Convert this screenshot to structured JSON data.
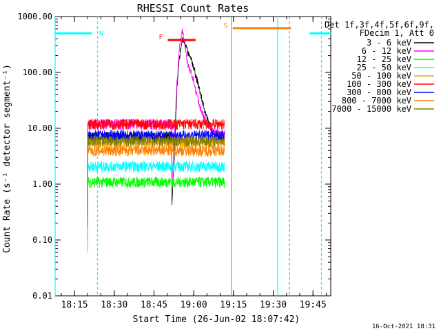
{
  "chart_data": {
    "type": "line",
    "title": "RHESSI Count Rates",
    "xlabel": "Start Time (26-Jun-02 18:07:42)",
    "ylabel": "Count Rate (s⁻¹ detector segment⁻¹)",
    "yscale": "log",
    "ylim": [
      0.01,
      1000
    ],
    "xlim_minutes": [
      0,
      104
    ],
    "y_ticks": [
      "0.01",
      "0.10",
      "1.00",
      "10.00",
      "100.00",
      "1000.00"
    ],
    "x_ticks": [
      "18:15",
      "18:30",
      "18:45",
      "19:00",
      "19:15",
      "19:30",
      "19:45"
    ],
    "legend_header": [
      "Det 1f,3f,4f,5f,6f,9f,",
      "FDecim 1, Att 0"
    ],
    "legend_position": "right",
    "series": [
      {
        "name": "3 - 6 keV",
        "color": "#000000",
        "base": 0.35,
        "points": [
          [
            44,
            0.35
          ],
          [
            45,
            3
          ],
          [
            46,
            55
          ],
          [
            47,
            200
          ],
          [
            48,
            380
          ],
          [
            49,
            360
          ],
          [
            50,
            230
          ],
          [
            52,
            140
          ],
          [
            54,
            60
          ],
          [
            56,
            25
          ],
          [
            58,
            12
          ],
          [
            60,
            8
          ],
          [
            62,
            7
          ],
          [
            63,
            7
          ]
        ]
      },
      {
        "name": "6 - 12 keV",
        "color": "#ff00ff",
        "base": 0.8,
        "points": [
          [
            44,
            0.8
          ],
          [
            46,
            70
          ],
          [
            47,
            300
          ],
          [
            48,
            560
          ],
          [
            49,
            320
          ],
          [
            50,
            140
          ],
          [
            52,
            80
          ],
          [
            54,
            30
          ],
          [
            56,
            16
          ],
          [
            58,
            11
          ],
          [
            60,
            9
          ],
          [
            62,
            8
          ],
          [
            63,
            8
          ]
        ]
      },
      {
        "name": "12 - 25 keV",
        "color": "#00ff00",
        "base": 0.2,
        "points": []
      },
      {
        "name": "25 - 50 keV",
        "color": "#00ffff",
        "base": 0.35,
        "points": []
      },
      {
        "name": "50 - 100 keV",
        "color": "#ffa500",
        "base": 0.7,
        "points": []
      },
      {
        "name": "100 - 300 keV",
        "color": "#ff0000",
        "base": 1.2,
        "points": []
      },
      {
        "name": "300 - 800 keV",
        "color": "#0000ff",
        "base": 0.85,
        "points": []
      },
      {
        "name": "800 - 7000 keV",
        "color": "#ff8000",
        "base": 0.55,
        "points": []
      },
      {
        "name": "7000 - 15000 keV",
        "color": "#808000",
        "base": 0.6,
        "points": []
      }
    ],
    "state_bars": [
      {
        "label": "N",
        "color": "#00ffff",
        "ranges": [
          [
            0,
            14
          ],
          [
            96,
            104
          ]
        ],
        "y": 500
      },
      {
        "label": "F",
        "color": "#ff0000",
        "ranges": [
          [
            42.5,
            53
          ]
        ],
        "y": 380
      },
      {
        "label": "S",
        "color": "#ff8000",
        "ranges": [
          [
            67,
            89
          ]
        ],
        "y": 620
      }
    ],
    "vlines": [
      {
        "x": 0,
        "color": "#00ffff",
        "dashed": false
      },
      {
        "x": 16,
        "color": "#00ffff",
        "dashed": true
      },
      {
        "x": 66.5,
        "color": "#ff8000",
        "dashed": false
      },
      {
        "x": 84,
        "color": "#00ffff",
        "dashed": false
      },
      {
        "x": 88.5,
        "color": "#ff8000",
        "dashed": true
      },
      {
        "x": 100.5,
        "color": "#00ffff",
        "dashed": true
      }
    ]
  },
  "footer": {
    "timestamp": "16-Oct-2021 18:31"
  }
}
